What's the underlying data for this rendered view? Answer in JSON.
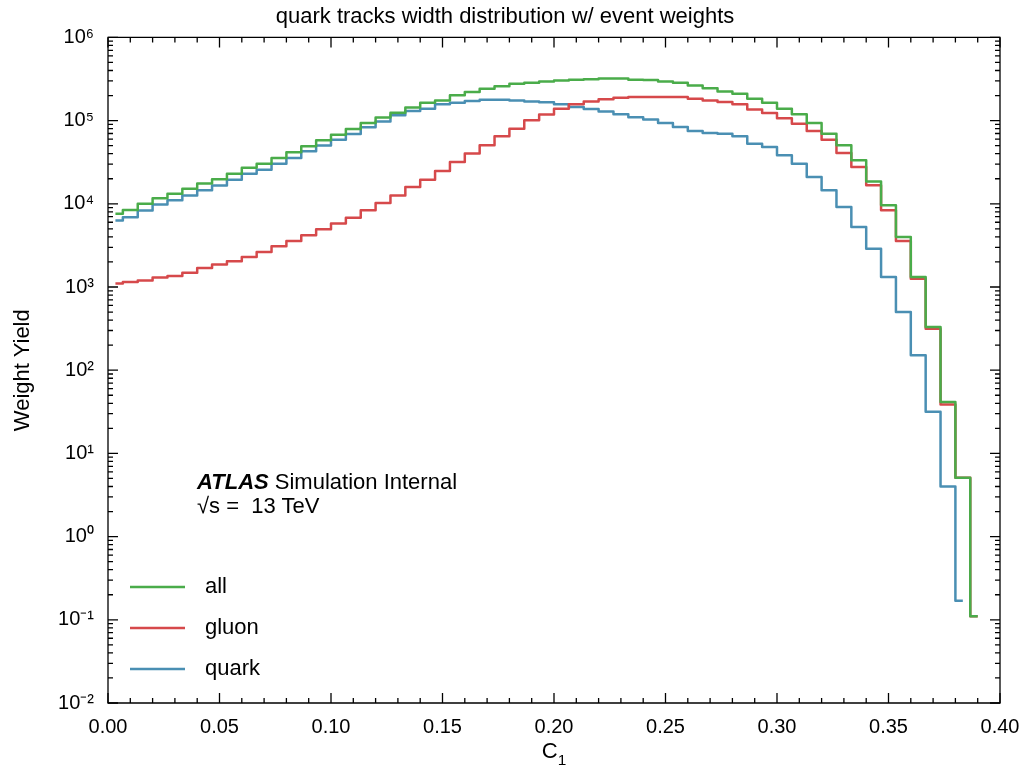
{
  "chart_data": {
    "type": "step",
    "title": "quark tracks width distribution w/ event weights",
    "xlabel": "C$_{1}$",
    "ylabel": "Weight Yield",
    "annotations": [
      "ATLAS Simulation Internal",
      "√s =  13 TeV"
    ],
    "x": [
      0.00333,
      0.01,
      0.01667,
      0.02333,
      0.03,
      0.03667,
      0.04333,
      0.05,
      0.05667,
      0.06333,
      0.07,
      0.07667,
      0.08333,
      0.09,
      0.09667,
      0.10333,
      0.11,
      0.11667,
      0.12333,
      0.13,
      0.13667,
      0.14333,
      0.15,
      0.15667,
      0.16333,
      0.17,
      0.17667,
      0.18333,
      0.19,
      0.19667,
      0.20333,
      0.21,
      0.21667,
      0.22333,
      0.23,
      0.23667,
      0.24333,
      0.25,
      0.25667,
      0.26333,
      0.27,
      0.27667,
      0.28333,
      0.29,
      0.29667,
      0.30333,
      0.31,
      0.31667,
      0.32333,
      0.33,
      0.33667,
      0.34333,
      0.35,
      0.35667,
      0.36333,
      0.37,
      0.37667,
      0.38333,
      0.39
    ],
    "series": [
      {
        "name": "all",
        "color": "#4aac4a",
        "values": [
          7600,
          8400,
          10000,
          11700,
          13200,
          15200,
          17500,
          19700,
          23000,
          27200,
          30300,
          35500,
          41600,
          49100,
          57900,
          67800,
          79000,
          93500,
          109000,
          124000,
          144000,
          164000,
          175000,
          201000,
          220000,
          242000,
          258000,
          278000,
          286000,
          296000,
          304000,
          310000,
          313000,
          321000,
          321000,
          310000,
          307000,
          296000,
          286000,
          265000,
          245000,
          224000,
          210000,
          183000,
          164000,
          139000,
          119000,
          93500,
          69700,
          50500,
          33300,
          18600,
          9600,
          4000,
          1320,
          331,
          41.6,
          5.1,
          0.11
        ]
      },
      {
        "name": "gluon",
        "color": "#d6494b",
        "values": [
          1100,
          1150,
          1200,
          1300,
          1360,
          1480,
          1690,
          1860,
          2040,
          2300,
          2640,
          3080,
          3570,
          4190,
          4940,
          5780,
          6820,
          8360,
          10200,
          12600,
          15900,
          19500,
          24800,
          31800,
          40100,
          50500,
          64700,
          80000,
          101000,
          118000,
          139000,
          157000,
          170000,
          180000,
          188000,
          192000,
          192000,
          192000,
          192000,
          183000,
          174000,
          167000,
          157000,
          136000,
          123000,
          107000,
          91800,
          75000,
          59000,
          40800,
          27700,
          16700,
          8360,
          3580,
          1260,
          316,
          38.6,
          5.1,
          0.11
        ]
      },
      {
        "name": "quark",
        "color": "#4a8fb3",
        "values": [
          6300,
          6900,
          8300,
          9800,
          11000,
          12600,
          14500,
          16600,
          19500,
          22900,
          25700,
          30200,
          35500,
          42700,
          50100,
          58900,
          69200,
          83200,
          97700,
          116000,
          130000,
          139000,
          157000,
          164000,
          172000,
          178000,
          178000,
          175000,
          170000,
          166000,
          157000,
          146000,
          138000,
          129000,
          119000,
          110000,
          103000,
          93500,
          83800,
          75000,
          70800,
          69700,
          64700,
          52800,
          48200,
          38300,
          30300,
          21000,
          14500,
          9160,
          5270,
          2890,
          1320,
          502,
          151,
          31.6,
          4.0,
          0.17,
          null
        ]
      }
    ],
    "log": "y",
    "xlim": [
      0,
      0.4
    ],
    "xticks": [
      {
        "value": 0,
        "label": "0.00"
      },
      {
        "value": 0.05,
        "label": "0.05"
      },
      {
        "value": 0.1,
        "label": "0.10"
      },
      {
        "value": 0.15,
        "label": "0.15"
      },
      {
        "value": 0.2,
        "label": "0.20"
      },
      {
        "value": 0.25,
        "label": "0.25"
      },
      {
        "value": 0.3,
        "label": "0.30"
      },
      {
        "value": 0.35,
        "label": "0.35"
      },
      {
        "value": 0.4,
        "label": "0.40"
      }
    ],
    "ylim": [
      0.01,
      1000000
    ],
    "yticks": [
      {
        "value": 0.01,
        "label": "10⁻²"
      },
      {
        "value": 0.1,
        "label": "10⁻¹"
      },
      {
        "value": 1,
        "label": "10⁰"
      },
      {
        "value": 10,
        "label": "10¹"
      },
      {
        "value": 100,
        "label": "10²"
      },
      {
        "value": 1000,
        "label": "10³"
      },
      {
        "value": 10000,
        "label": "10⁴"
      },
      {
        "value": 100000,
        "label": "10⁵"
      },
      {
        "value": 1000000,
        "label": "10⁶"
      }
    ],
    "legend": "bottom left"
  }
}
